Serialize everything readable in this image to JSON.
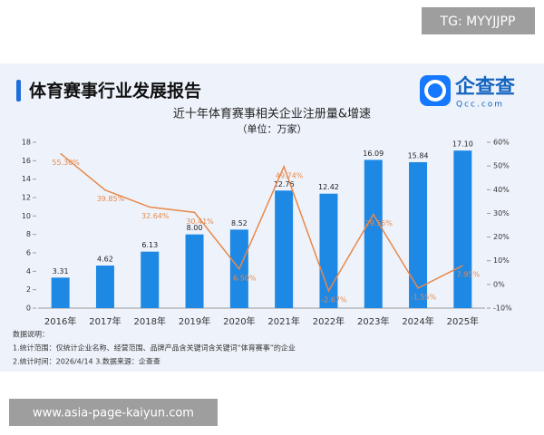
{
  "watermark": "TG: MYYJJPP",
  "header": {
    "title": "体育赛事行业发展报告"
  },
  "logo": {
    "name": "企查查",
    "domain": "Qcc.com"
  },
  "notes": [
    "数据说明：",
    "1.统计范围：仅统计企业名称、经营范围、品牌产品含关键词含关键词“体育赛事”的企业",
    "2.统计时间：2026/4/14 3.数据来源：企查查"
  ],
  "footer_url": "www.asia-page-kaiyun.com",
  "chart_data": {
    "type": "bar",
    "title": "近十年体育赛事相关企业注册量&增速",
    "subtitle": "（单位：万家）",
    "categories": [
      "2016年",
      "2017年",
      "2018年",
      "2019年",
      "2020年",
      "2021年",
      "2022年",
      "2023年",
      "2024年",
      "2025年"
    ],
    "series": [
      {
        "name": "注册量",
        "type": "bar",
        "color": "#1e88e5",
        "values": [
          3.31,
          4.62,
          6.13,
          8.0,
          8.52,
          12.76,
          12.42,
          16.09,
          15.84,
          17.1
        ],
        "value_labels": [
          "3.31",
          "4.62",
          "6.13",
          "8.00",
          "8.52",
          "12.76",
          "12.42",
          "16.09",
          "15.84",
          "17.10"
        ]
      },
      {
        "name": "增速",
        "type": "line",
        "axis": "y2",
        "color": "#e8884a",
        "values": [
          55.3,
          39.85,
          32.64,
          30.41,
          6.5,
          49.74,
          -2.67,
          29.55,
          -1.55,
          7.95
        ],
        "value_labels": [
          "55.30%",
          "39.85%",
          "32.64%",
          "30.41%",
          "6.50%",
          "49.74%",
          "-2.67%",
          "29.55%",
          "-1.55%",
          "7.95%"
        ]
      }
    ],
    "ylim": [
      0,
      18
    ],
    "yticks": [
      0,
      2,
      4,
      6,
      8,
      10,
      12,
      14,
      16,
      18
    ],
    "y2lim": [
      -10,
      60
    ],
    "y2ticks": [
      {
        "value": -10,
        "label": "-10%"
      },
      {
        "value": 0,
        "label": "0%"
      },
      {
        "value": 10,
        "label": "10%"
      },
      {
        "value": 20,
        "label": "20%"
      },
      {
        "value": 30,
        "label": "30%"
      },
      {
        "value": 40,
        "label": "40%"
      },
      {
        "value": 50,
        "label": "50%"
      },
      {
        "value": 60,
        "label": "60%"
      }
    ]
  }
}
